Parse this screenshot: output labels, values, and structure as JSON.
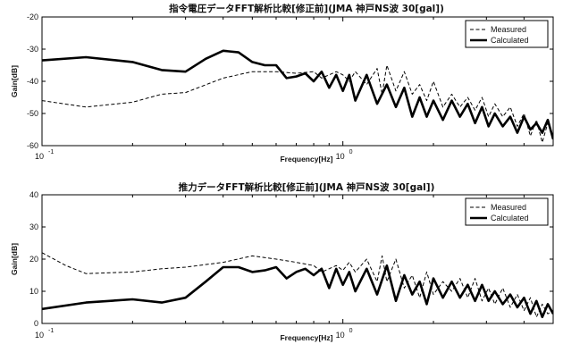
{
  "chart_data": [
    {
      "type": "line",
      "title": "指令電圧データFFT解析比較[修正前](JMA 神戸NS波 30[gal])",
      "xlabel": "Frequency[Hz]",
      "ylabel": "Gain[dB]",
      "xscale": "log",
      "xlim": [
        0.1,
        5
      ],
      "ylim": [
        -60,
        -20
      ],
      "yticks": [
        "-20",
        "-30",
        "-40",
        "-50",
        "-60"
      ],
      "xtick_base": "10",
      "xtick_exps": [
        "-1",
        "0"
      ],
      "legend_position": "top-right",
      "series": [
        {
          "name": "Measured",
          "style": "dashed",
          "points": [
            [
              0.1,
              -46
            ],
            [
              0.14,
              -48
            ],
            [
              0.2,
              -46.5
            ],
            [
              0.25,
              -44
            ],
            [
              0.3,
              -43.5
            ],
            [
              0.4,
              -39
            ],
            [
              0.5,
              -37
            ],
            [
              0.6,
              -37
            ],
            [
              0.7,
              -37.5
            ],
            [
              0.8,
              -37
            ],
            [
              0.85,
              -39
            ],
            [
              0.9,
              -38
            ],
            [
              0.95,
              -37
            ],
            [
              1.0,
              -38
            ],
            [
              1.05,
              -40
            ],
            [
              1.1,
              -37
            ],
            [
              1.2,
              -41
            ],
            [
              1.3,
              -36
            ],
            [
              1.35,
              -44
            ],
            [
              1.4,
              -35
            ],
            [
              1.5,
              -43
            ],
            [
              1.6,
              -37
            ],
            [
              1.7,
              -44
            ],
            [
              1.8,
              -41
            ],
            [
              1.9,
              -46
            ],
            [
              2.0,
              -40
            ],
            [
              2.15,
              -48
            ],
            [
              2.3,
              -44
            ],
            [
              2.45,
              -48
            ],
            [
              2.6,
              -45
            ],
            [
              2.75,
              -49
            ],
            [
              2.9,
              -45
            ],
            [
              3.05,
              -51
            ],
            [
              3.2,
              -47
            ],
            [
              3.4,
              -51
            ],
            [
              3.6,
              -48
            ],
            [
              3.8,
              -54
            ],
            [
              4.0,
              -50
            ],
            [
              4.2,
              -57
            ],
            [
              4.4,
              -52
            ],
            [
              4.6,
              -59
            ],
            [
              4.8,
              -53
            ],
            [
              5.0,
              -57
            ]
          ]
        },
        {
          "name": "Calculated",
          "style": "solid",
          "points": [
            [
              0.1,
              -33.5
            ],
            [
              0.14,
              -32.5
            ],
            [
              0.2,
              -34
            ],
            [
              0.25,
              -36.5
            ],
            [
              0.3,
              -37
            ],
            [
              0.35,
              -33
            ],
            [
              0.4,
              -30.5
            ],
            [
              0.45,
              -31
            ],
            [
              0.5,
              -34
            ],
            [
              0.55,
              -35
            ],
            [
              0.6,
              -35
            ],
            [
              0.65,
              -39
            ],
            [
              0.7,
              -38.5
            ],
            [
              0.75,
              -37.5
            ],
            [
              0.8,
              -40
            ],
            [
              0.85,
              -37
            ],
            [
              0.9,
              -42
            ],
            [
              0.95,
              -38
            ],
            [
              1.0,
              -43
            ],
            [
              1.05,
              -38
            ],
            [
              1.1,
              -46
            ],
            [
              1.2,
              -38
            ],
            [
              1.3,
              -47
            ],
            [
              1.4,
              -41
            ],
            [
              1.5,
              -48
            ],
            [
              1.6,
              -42
            ],
            [
              1.7,
              -51
            ],
            [
              1.8,
              -45
            ],
            [
              1.9,
              -51
            ],
            [
              2.0,
              -46
            ],
            [
              2.15,
              -52
            ],
            [
              2.3,
              -46
            ],
            [
              2.45,
              -51
            ],
            [
              2.6,
              -47
            ],
            [
              2.75,
              -53
            ],
            [
              2.9,
              -48
            ],
            [
              3.05,
              -54
            ],
            [
              3.2,
              -50
            ],
            [
              3.4,
              -54
            ],
            [
              3.6,
              -51
            ],
            [
              3.8,
              -56
            ],
            [
              4.0,
              -51
            ],
            [
              4.2,
              -55
            ],
            [
              4.4,
              -53
            ],
            [
              4.6,
              -56
            ],
            [
              4.8,
              -52
            ],
            [
              5.0,
              -58
            ]
          ]
        }
      ]
    },
    {
      "type": "line",
      "title": "推力データFFT解析比較[修正前](JMA 神戸NS波 30[gal])",
      "xlabel": "Frequency[Hz]",
      "ylabel": "Gain[dB]",
      "xscale": "log",
      "xlim": [
        0.1,
        5
      ],
      "ylim": [
        0,
        40
      ],
      "yticks": [
        "40",
        "30",
        "20",
        "10",
        "0"
      ],
      "xtick_base": "10",
      "xtick_exps": [
        "-1",
        "0"
      ],
      "legend_position": "top-right",
      "series": [
        {
          "name": "Measured",
          "style": "dashed",
          "points": [
            [
              0.1,
              22
            ],
            [
              0.12,
              18
            ],
            [
              0.14,
              15.5
            ],
            [
              0.2,
              16
            ],
            [
              0.25,
              17
            ],
            [
              0.3,
              17.5
            ],
            [
              0.4,
              19
            ],
            [
              0.5,
              21
            ],
            [
              0.6,
              20
            ],
            [
              0.7,
              19
            ],
            [
              0.8,
              18
            ],
            [
              0.85,
              16
            ],
            [
              0.9,
              17
            ],
            [
              0.95,
              18
            ],
            [
              1.0,
              16.5
            ],
            [
              1.05,
              19
            ],
            [
              1.1,
              16
            ],
            [
              1.2,
              20
            ],
            [
              1.3,
              13
            ],
            [
              1.35,
              21
            ],
            [
              1.4,
              13
            ],
            [
              1.5,
              20
            ],
            [
              1.6,
              11
            ],
            [
              1.7,
              15
            ],
            [
              1.8,
              8
            ],
            [
              1.9,
              16
            ],
            [
              2.0,
              9
            ],
            [
              2.15,
              13
            ],
            [
              2.3,
              10
            ],
            [
              2.45,
              14
            ],
            [
              2.6,
              8
            ],
            [
              2.75,
              14
            ],
            [
              2.9,
              7
            ],
            [
              3.05,
              11
            ],
            [
              3.2,
              6
            ],
            [
              3.4,
              11
            ],
            [
              3.6,
              5
            ],
            [
              3.8,
              9
            ],
            [
              4.0,
              4
            ],
            [
              4.2,
              8
            ],
            [
              4.4,
              2
            ],
            [
              4.6,
              6
            ],
            [
              4.8,
              3
            ],
            [
              5.0,
              4
            ]
          ]
        },
        {
          "name": "Calculated",
          "style": "solid",
          "points": [
            [
              0.1,
              4.5
            ],
            [
              0.14,
              6.5
            ],
            [
              0.2,
              7.5
            ],
            [
              0.25,
              6.5
            ],
            [
              0.3,
              8
            ],
            [
              0.35,
              13
            ],
            [
              0.4,
              17.5
            ],
            [
              0.45,
              17.5
            ],
            [
              0.5,
              16
            ],
            [
              0.55,
              16.5
            ],
            [
              0.6,
              17.5
            ],
            [
              0.65,
              14
            ],
            [
              0.7,
              16
            ],
            [
              0.75,
              17
            ],
            [
              0.8,
              15
            ],
            [
              0.85,
              17
            ],
            [
              0.9,
              11
            ],
            [
              0.95,
              17
            ],
            [
              1.0,
              12
            ],
            [
              1.05,
              16
            ],
            [
              1.1,
              10
            ],
            [
              1.2,
              17
            ],
            [
              1.3,
              9
            ],
            [
              1.4,
              18
            ],
            [
              1.5,
              7
            ],
            [
              1.6,
              15
            ],
            [
              1.7,
              9
            ],
            [
              1.8,
              13
            ],
            [
              1.9,
              6
            ],
            [
              2.0,
              14
            ],
            [
              2.15,
              8
            ],
            [
              2.3,
              13
            ],
            [
              2.45,
              8
            ],
            [
              2.6,
              12
            ],
            [
              2.75,
              7
            ],
            [
              2.9,
              12
            ],
            [
              3.05,
              7
            ],
            [
              3.2,
              10
            ],
            [
              3.4,
              6
            ],
            [
              3.6,
              9
            ],
            [
              3.8,
              5
            ],
            [
              4.0,
              8
            ],
            [
              4.2,
              3
            ],
            [
              4.4,
              7
            ],
            [
              4.6,
              2
            ],
            [
              4.8,
              6
            ],
            [
              5.0,
              3
            ]
          ]
        }
      ]
    }
  ]
}
